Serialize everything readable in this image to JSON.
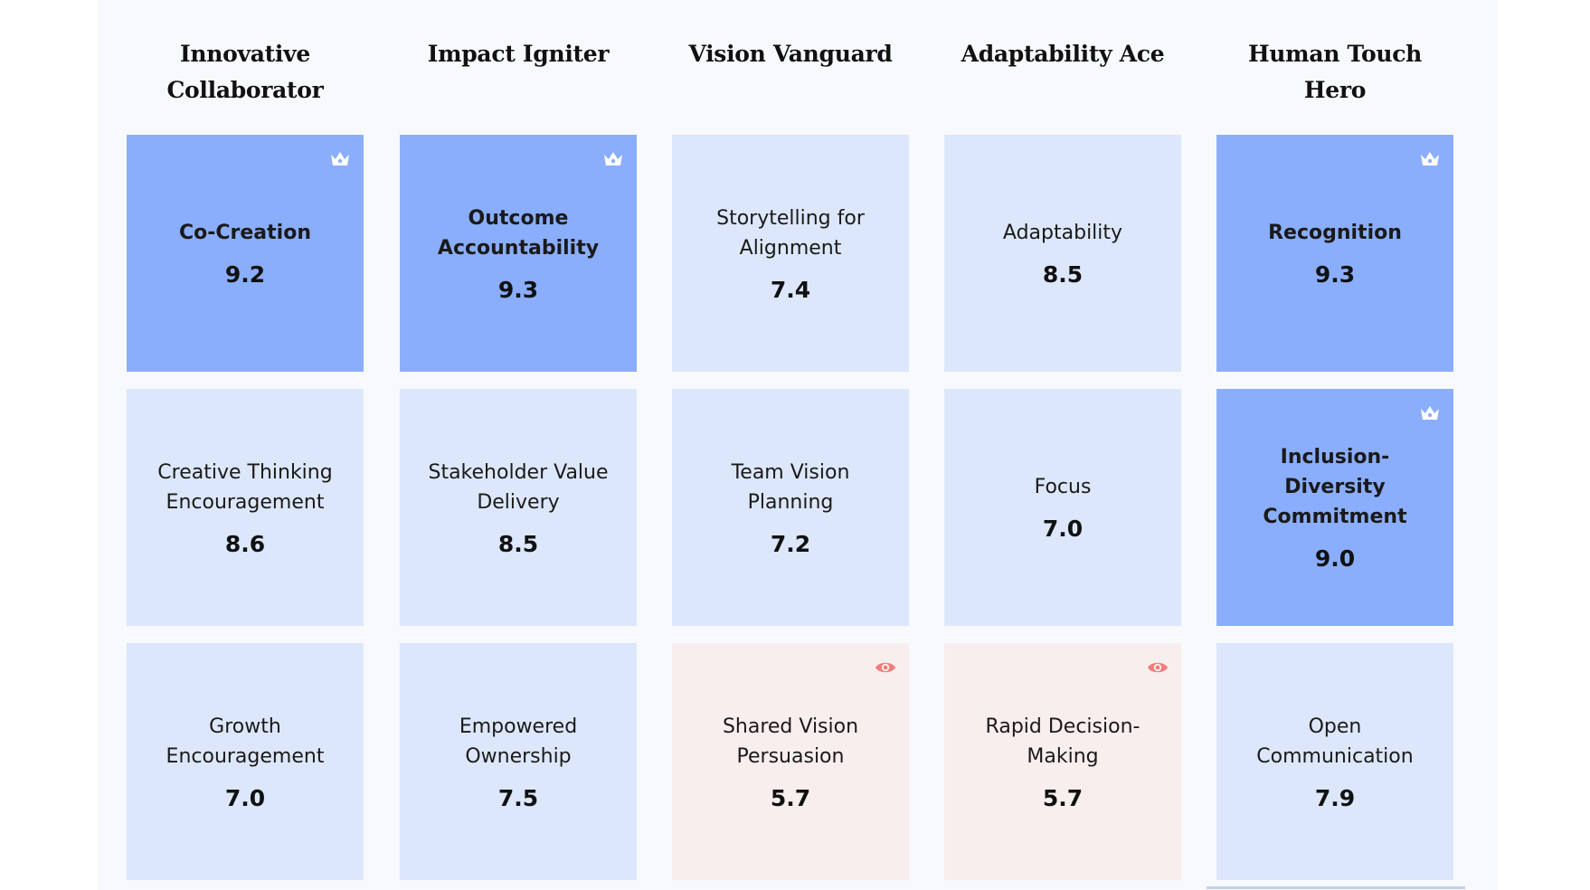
{
  "colors": {
    "panel_bg": "#f8f9fd",
    "neutral_card": "#dde7fb",
    "strength_card": "#8aaefc",
    "watch_card": "#f8eeed",
    "crown_icon": "#ffffff",
    "eye_icon": "#f07c7c"
  },
  "columns": [
    {
      "title": "Innovative Collaborator"
    },
    {
      "title": "Impact Igniter"
    },
    {
      "title": "Vision Vanguard"
    },
    {
      "title": "Adaptability Ace"
    },
    {
      "title": "Human Touch Hero"
    }
  ],
  "cards": [
    [
      {
        "name": "Co-Creation",
        "score": "9.2",
        "status": "strength",
        "icon": "crown-icon"
      },
      {
        "name": "Creative Thinking Encouragement",
        "score": "8.6",
        "status": "neutral",
        "icon": ""
      },
      {
        "name": "Growth Encouragement",
        "score": "7.0",
        "status": "neutral",
        "icon": ""
      }
    ],
    [
      {
        "name": "Outcome Accountability",
        "score": "9.3",
        "status": "strength",
        "icon": "crown-icon"
      },
      {
        "name": "Stakeholder Value Delivery",
        "score": "8.5",
        "status": "neutral",
        "icon": ""
      },
      {
        "name": "Empowered Ownership",
        "score": "7.5",
        "status": "neutral",
        "icon": ""
      }
    ],
    [
      {
        "name": "Storytelling for Alignment",
        "score": "7.4",
        "status": "neutral",
        "icon": ""
      },
      {
        "name": "Team Vision Planning",
        "score": "7.2",
        "status": "neutral",
        "icon": ""
      },
      {
        "name": "Shared Vision Persuasion",
        "score": "5.7",
        "status": "watch",
        "icon": "eye-icon"
      }
    ],
    [
      {
        "name": "Adaptability",
        "score": "8.5",
        "status": "neutral",
        "icon": ""
      },
      {
        "name": "Focus",
        "score": "7.0",
        "status": "neutral",
        "icon": ""
      },
      {
        "name": "Rapid Decision-Making",
        "score": "5.7",
        "status": "watch",
        "icon": "eye-icon"
      }
    ],
    [
      {
        "name": "Recognition",
        "score": "9.3",
        "status": "strength",
        "icon": "crown-icon"
      },
      {
        "name": "Inclusion-Diversity Commitment",
        "score": "9.0",
        "status": "strength",
        "icon": "crown-icon"
      },
      {
        "name": "Open Communication",
        "score": "7.9",
        "status": "neutral",
        "icon": ""
      }
    ]
  ]
}
